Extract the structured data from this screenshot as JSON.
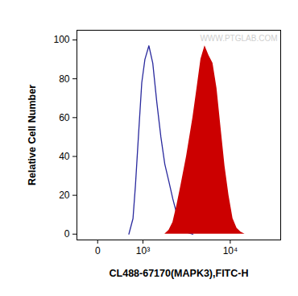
{
  "chart_data": {
    "type": "histogram",
    "x_label": "CL488-67170(MAPK3),FITC-H",
    "y_label": "Relative Cell Number",
    "log": "x",
    "xlim": [
      -340,
      31000
    ],
    "xticks": [
      0,
      {
        "value": 1000,
        "label": "10³"
      },
      {
        "value": 10000,
        "label": "10⁴"
      }
    ],
    "ylim": [
      -3,
      105
    ],
    "yticks": [
      0,
      20,
      40,
      60,
      80,
      100
    ],
    "annotations": [
      {
        "text": "WWW.PTGLAB.COM"
      }
    ],
    "series": [
      {
        "type": "line",
        "color": "#2a2a9e",
        "x": [
          580,
          690,
          760,
          850,
          960,
          1070,
          1220,
          1380,
          1560,
          1760,
          1970,
          2210,
          2460,
          2740,
          3040,
          3510,
          4120
        ],
        "values": [
          0,
          8,
          25,
          50,
          78,
          90,
          97,
          88,
          68,
          50,
          36,
          27,
          18,
          10,
          5,
          1,
          0
        ]
      },
      {
        "type": "area",
        "color": "#cc0000",
        "x": [
          1970,
          2210,
          2460,
          2740,
          3040,
          3510,
          4120,
          4550,
          5010,
          5520,
          6070,
          6680,
          7340,
          8050,
          8840,
          9690,
          10630,
          11650,
          12750,
          13960
        ],
        "values": [
          0,
          2,
          6,
          15,
          25,
          40,
          60,
          75,
          90,
          97,
          92,
          88,
          75,
          55,
          35,
          20,
          8,
          3,
          1,
          0
        ]
      }
    ]
  }
}
